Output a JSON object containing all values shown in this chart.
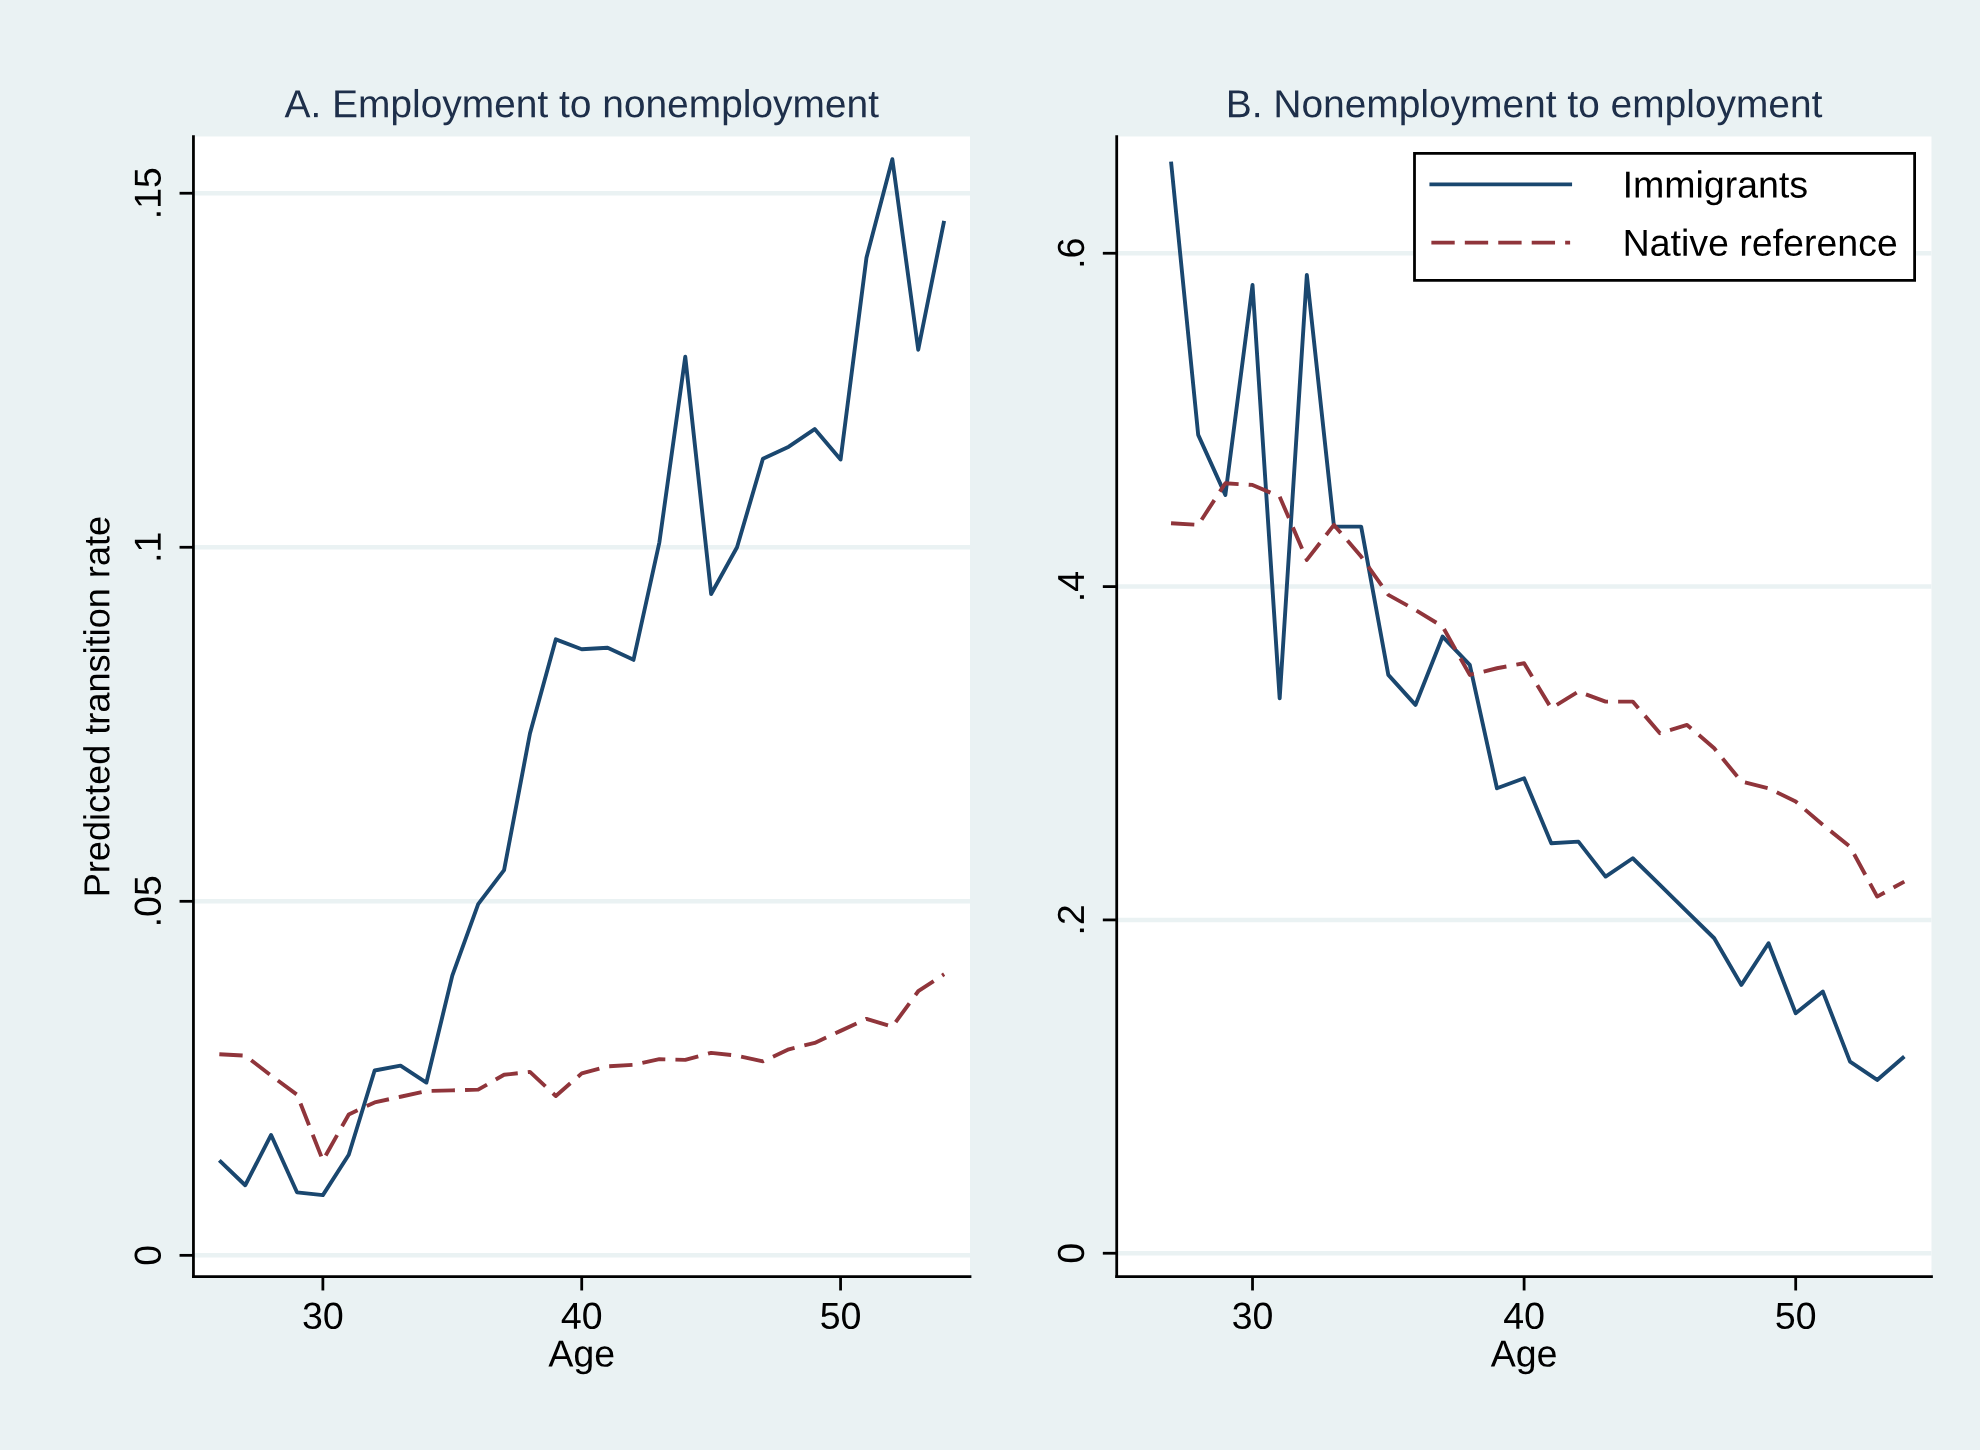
{
  "chart_data": [
    {
      "type": "line",
      "title": "A. Employment to nonemployment",
      "xlabel": "Age",
      "ylabel": "Predicted transition rate",
      "x": [
        26,
        27,
        28,
        29,
        30,
        31,
        32,
        33,
        34,
        35,
        36,
        37,
        38,
        39,
        40,
        41,
        42,
        43,
        44,
        45,
        46,
        47,
        48,
        49,
        50,
        51,
        52,
        53,
        54
      ],
      "series": [
        {
          "color": "#1a476f",
          "line_style": "solid",
          "values": [
            0.0134,
            0.0099,
            0.017,
            0.0089,
            0.0085,
            0.0142,
            0.0261,
            0.0268,
            0.0244,
            0.0395,
            0.0496,
            0.0544,
            0.0737,
            0.087,
            0.0856,
            0.0858,
            0.0841,
            0.1007,
            0.1269,
            0.0934,
            0.1,
            0.1125,
            0.1142,
            0.1167,
            0.1124,
            0.1409,
            0.1548,
            0.1279,
            0.1461
          ]
        },
        {
          "color": "#90353b",
          "line_style": "dashed",
          "values": [
            0.0284,
            0.0282,
            0.0254,
            0.0227,
            0.0134,
            0.0199,
            0.0216,
            0.0224,
            0.0232,
            0.0233,
            0.0234,
            0.0255,
            0.0259,
            0.0225,
            0.0257,
            0.0267,
            0.0269,
            0.0277,
            0.0276,
            0.0286,
            0.0282,
            0.0274,
            0.0291,
            0.03,
            0.0317,
            0.0334,
            0.0323,
            0.0373,
            0.0397
          ]
        }
      ],
      "xlim": [
        25,
        55
      ],
      "xticks": [
        30,
        40,
        50
      ],
      "ylim": [
        -0.003,
        0.158
      ],
      "yticks": [
        0,
        {
          "value": 0.05,
          "label": ".05"
        },
        {
          "value": 0.1,
          "label": ".1"
        },
        {
          "value": 0.15,
          "label": ".15"
        }
      ],
      "grid": "y"
    },
    {
      "type": "line",
      "title": "B. Nonemployment to employment",
      "xlabel": "Age",
      "x": [
        27,
        28,
        29,
        30,
        31,
        32,
        33,
        34,
        35,
        36,
        37,
        38,
        39,
        40,
        41,
        42,
        43,
        44,
        45,
        46,
        47,
        48,
        49,
        50,
        51,
        52,
        53,
        54
      ],
      "series": [
        {
          "name": "Immigrants",
          "color": "#1a476f",
          "line_style": "solid",
          "values": [
            0.655,
            0.491,
            0.455,
            0.581,
            0.333,
            0.587,
            0.436,
            0.436,
            0.347,
            0.329,
            0.37,
            0.353,
            0.279,
            0.285,
            0.246,
            0.247,
            0.226,
            0.237,
            0.221,
            0.205,
            0.189,
            0.161,
            0.186,
            0.144,
            0.157,
            0.115,
            0.104,
            0.118
          ]
        },
        {
          "name": "Native reference",
          "color": "#90353b",
          "line_style": "dashed",
          "values": [
            0.438,
            0.437,
            0.462,
            0.461,
            0.454,
            0.416,
            0.437,
            0.418,
            0.395,
            0.386,
            0.376,
            0.347,
            0.351,
            0.354,
            0.327,
            0.337,
            0.331,
            0.331,
            0.312,
            0.317,
            0.303,
            0.283,
            0.279,
            0.271,
            0.257,
            0.244,
            0.214,
            0.223
          ]
        }
      ],
      "xlim": [
        25,
        55
      ],
      "xticks": [
        30,
        40,
        50
      ],
      "ylim": [
        -0.014,
        0.67
      ],
      "yticks": [
        0,
        {
          "value": 0.2,
          "label": ".2"
        },
        {
          "value": 0.4,
          "label": ".4"
        },
        {
          "value": 0.6,
          "label": ".6"
        }
      ],
      "grid": "y",
      "legend": "top right"
    }
  ]
}
